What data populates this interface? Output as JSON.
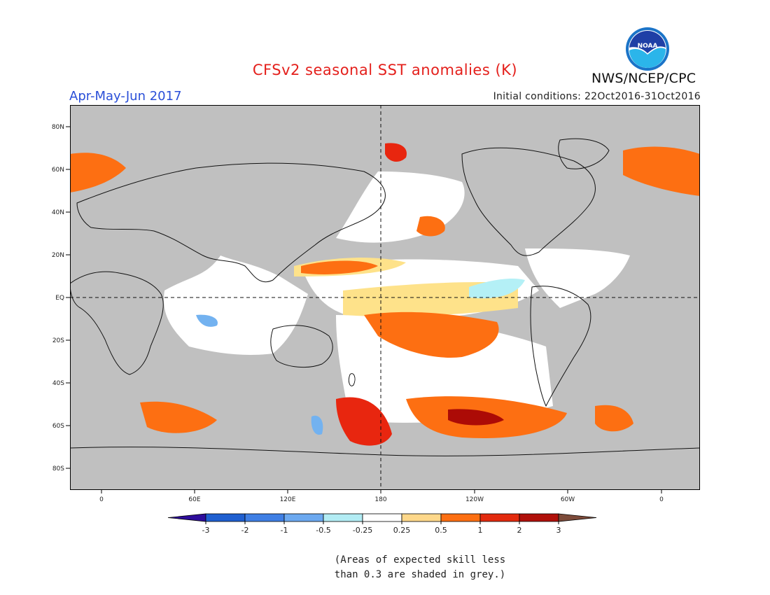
{
  "header": {
    "title": "CFSv2 seasonal SST anomalies (K)",
    "season": "Apr-May-Jun 2017",
    "initial_conditions": "Initial conditions: 22Oct2016-31Oct2016",
    "agency": "NWS/NCEP/CPC",
    "logo_text": "NOAA"
  },
  "map": {
    "lat_labels": [
      "80N",
      "60N",
      "40N",
      "20N",
      "EQ",
      "20S",
      "40S",
      "60S",
      "80S"
    ],
    "lon_labels": [
      "0",
      "60E",
      "120E",
      "180",
      "120W",
      "60W",
      "0"
    ],
    "colors": {
      "skill_grey": "#c0c0c0",
      "neutral": "#ffffff",
      "pos_025_05": "#fee28a",
      "pos_05_1": "#fd6f12",
      "pos_1_2": "#e8260f",
      "pos_2_3": "#ac0b06",
      "neg_025": "#b4f0f6",
      "neg_05": "#73b2f0",
      "neg_1": "#4a8fe6"
    }
  },
  "legend": {
    "labels": [
      "-3",
      "-2",
      "-1",
      "-0.5",
      "-0.25",
      "0.25",
      "0.5",
      "1",
      "2",
      "3"
    ],
    "colors": [
      "#2e0d9c",
      "#1f5fd0",
      "#3f7fe4",
      "#6ca9f0",
      "#b2ecf4",
      "#ffffff",
      "#fed88a",
      "#fd6f12",
      "#e32a0e",
      "#b0100a",
      "#7d4b3a"
    ]
  },
  "note": "(Areas of expected skill less\nthan 0.3 are shaded in grey.)"
}
